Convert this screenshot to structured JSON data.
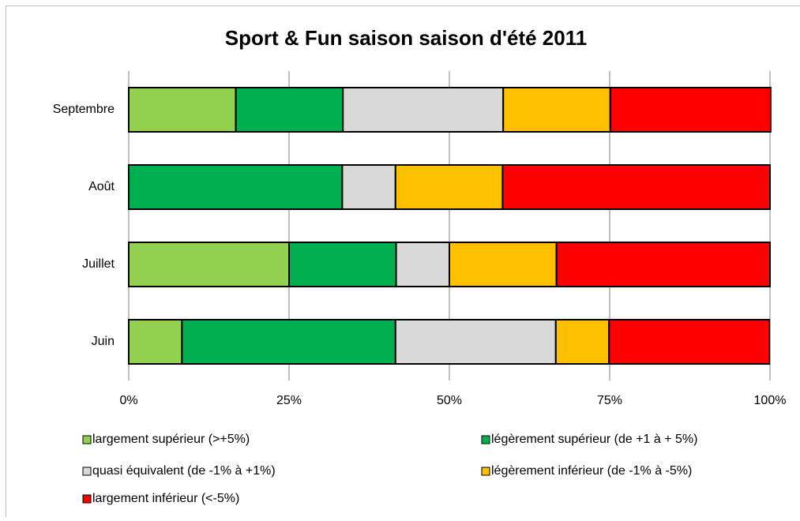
{
  "chart_data": {
    "type": "stacked-bar-horizontal",
    "title": "Sport & Fun saison saison d'été 2011",
    "categories": [
      "Septembre",
      "Août",
      "Juillet",
      "Juin"
    ],
    "series": [
      {
        "name": "largement supérieur (>+5%)",
        "color": "#92d050",
        "values": [
          16.7,
          0,
          25,
          8.3
        ]
      },
      {
        "name": "légèrement supérieur (de +1 à + 5%)",
        "color": "#00b050",
        "values": [
          16.7,
          33.3,
          16.7,
          33.3
        ]
      },
      {
        "name": "quasi équivalent (de -1% à +1%)",
        "color": "#d9d9d9",
        "values": [
          25,
          8.3,
          8.3,
          25
        ]
      },
      {
        "name": "légèrement inférieur (de -1% à -5%)",
        "color": "#ffc000",
        "values": [
          16.7,
          16.7,
          16.7,
          8.3
        ]
      },
      {
        "name": "largement inférieur (<-5%)",
        "color": "#ff0000",
        "values": [
          25,
          41.7,
          33.3,
          25
        ]
      }
    ],
    "xlim": [
      0,
      100
    ],
    "xticks": [
      {
        "value": 0,
        "label": "0%"
      },
      {
        "value": 25,
        "label": "25%"
      },
      {
        "value": 50,
        "label": "50%"
      },
      {
        "value": 75,
        "label": "75%"
      },
      {
        "value": 100,
        "label": "100%"
      }
    ],
    "grid": true
  }
}
